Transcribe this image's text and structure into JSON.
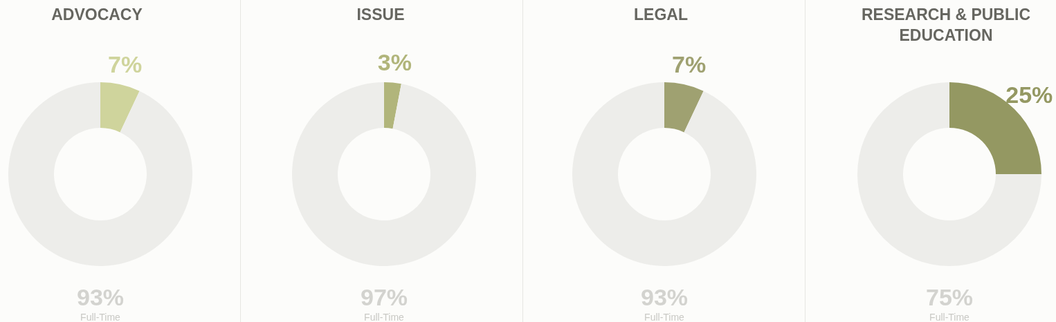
{
  "chart_data": [
    {
      "type": "donut",
      "title": "ADVOCACY",
      "categories": [
        null,
        "Full-Time"
      ],
      "values": [
        7,
        93
      ],
      "colors": [
        "#cfd49c",
        "#ededea"
      ],
      "value_labels": [
        "7%",
        "93%"
      ]
    },
    {
      "type": "donut",
      "title": "ISSUE",
      "categories": [
        null,
        "Full-Time"
      ],
      "values": [
        3,
        97
      ],
      "colors": [
        "#b1b57b",
        "#ededea"
      ],
      "value_labels": [
        "3%",
        "97%"
      ]
    },
    {
      "type": "donut",
      "title": "LEGAL",
      "categories": [
        null,
        "Full-Time"
      ],
      "values": [
        7,
        93
      ],
      "colors": [
        "#9fa171",
        "#ededea"
      ],
      "value_labels": [
        "7%",
        "93%"
      ]
    },
    {
      "type": "donut",
      "title": "RESEARCH & PUBLIC EDUCATION",
      "categories": [
        null,
        "Full-Time"
      ],
      "values": [
        25,
        75
      ],
      "colors": [
        "#949862",
        "#ededea"
      ],
      "value_labels": [
        "25%",
        "75%"
      ]
    }
  ]
}
